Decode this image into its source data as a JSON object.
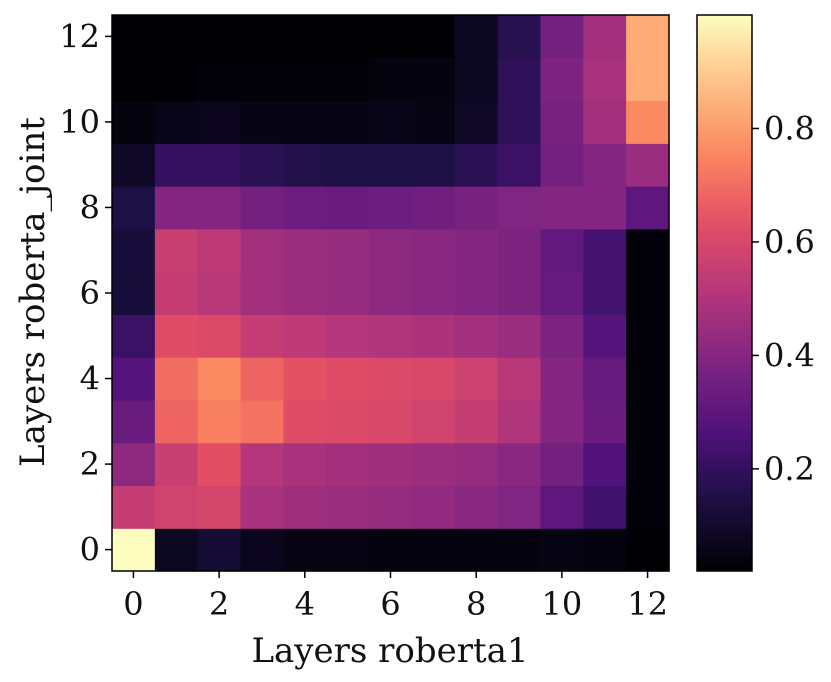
{
  "chart_data": {
    "type": "heatmap",
    "xlabel": "Layers roberta1",
    "ylabel": "Layers roberta_joint",
    "x_ticks": [
      "0",
      "2",
      "4",
      "6",
      "8",
      "10",
      "12"
    ],
    "y_ticks": [
      "0",
      "2",
      "4",
      "6",
      "8",
      "10",
      "12"
    ],
    "colorbar_ticks": [
      "0.2",
      "0.4",
      "0.6",
      "0.8"
    ],
    "colorbar_range": [
      0.02,
      1.0
    ],
    "colormap": "magma",
    "x": [
      0,
      1,
      2,
      3,
      4,
      5,
      6,
      7,
      8,
      9,
      10,
      11,
      12
    ],
    "y": [
      0,
      1,
      2,
      3,
      4,
      5,
      6,
      7,
      8,
      9,
      10,
      11,
      12
    ],
    "values": [
      [
        1.0,
        0.08,
        0.12,
        0.07,
        0.05,
        0.05,
        0.04,
        0.04,
        0.04,
        0.04,
        0.05,
        0.04,
        0.02
      ],
      [
        0.55,
        0.58,
        0.59,
        0.48,
        0.46,
        0.45,
        0.44,
        0.43,
        0.41,
        0.39,
        0.3,
        0.23,
        0.03
      ],
      [
        0.42,
        0.56,
        0.63,
        0.51,
        0.48,
        0.47,
        0.46,
        0.45,
        0.44,
        0.41,
        0.36,
        0.27,
        0.03
      ],
      [
        0.33,
        0.68,
        0.74,
        0.71,
        0.62,
        0.61,
        0.6,
        0.58,
        0.55,
        0.5,
        0.4,
        0.33,
        0.03
      ],
      [
        0.28,
        0.7,
        0.76,
        0.68,
        0.64,
        0.62,
        0.61,
        0.6,
        0.57,
        0.52,
        0.4,
        0.32,
        0.03
      ],
      [
        0.22,
        0.62,
        0.61,
        0.55,
        0.53,
        0.51,
        0.5,
        0.49,
        0.47,
        0.45,
        0.38,
        0.28,
        0.03
      ],
      [
        0.13,
        0.55,
        0.52,
        0.47,
        0.45,
        0.44,
        0.42,
        0.41,
        0.4,
        0.38,
        0.32,
        0.24,
        0.03
      ],
      [
        0.13,
        0.56,
        0.53,
        0.47,
        0.45,
        0.44,
        0.42,
        0.41,
        0.4,
        0.38,
        0.31,
        0.24,
        0.03
      ],
      [
        0.15,
        0.4,
        0.4,
        0.36,
        0.34,
        0.33,
        0.34,
        0.35,
        0.37,
        0.39,
        0.4,
        0.4,
        0.3
      ],
      [
        0.09,
        0.21,
        0.21,
        0.18,
        0.16,
        0.15,
        0.15,
        0.15,
        0.18,
        0.22,
        0.36,
        0.4,
        0.45
      ],
      [
        0.04,
        0.06,
        0.07,
        0.05,
        0.05,
        0.05,
        0.06,
        0.05,
        0.09,
        0.19,
        0.37,
        0.47,
        0.76
      ],
      [
        0.02,
        0.02,
        0.03,
        0.03,
        0.03,
        0.03,
        0.04,
        0.04,
        0.08,
        0.19,
        0.38,
        0.48,
        0.83
      ],
      [
        0.02,
        0.02,
        0.02,
        0.02,
        0.02,
        0.02,
        0.02,
        0.02,
        0.08,
        0.17,
        0.36,
        0.47,
        0.83
      ]
    ]
  }
}
